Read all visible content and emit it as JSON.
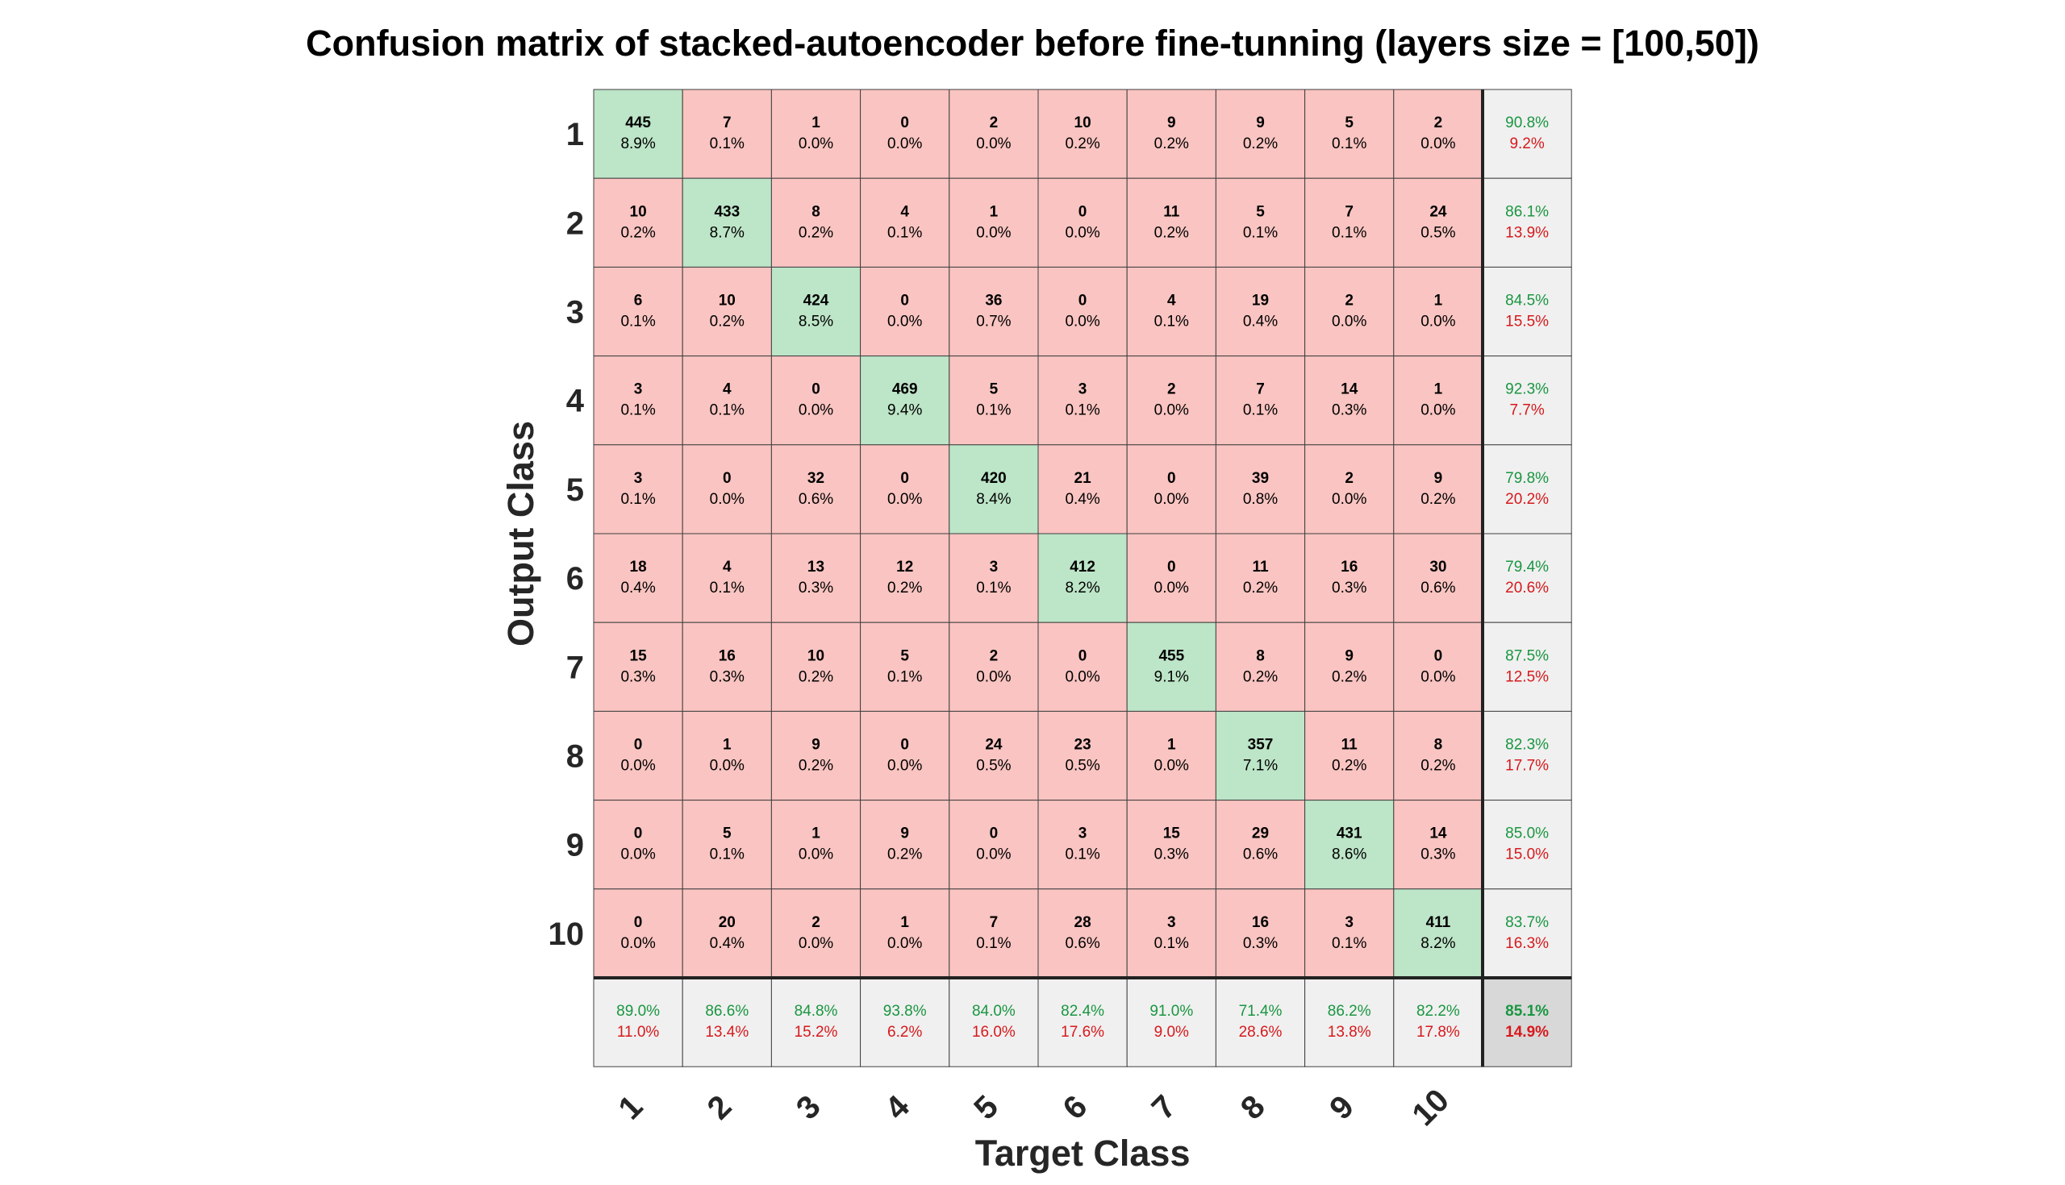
{
  "chart_data": {
    "type": "heatmap",
    "title": "Confusion matrix of stacked-autoencoder before fine-tunning (layers size = [100,50])",
    "xlabel": "Target Class",
    "ylabel": "Output Class",
    "row_labels": [
      "1",
      "2",
      "3",
      "4",
      "5",
      "6",
      "7",
      "8",
      "9",
      "10"
    ],
    "col_labels": [
      "1",
      "2",
      "3",
      "4",
      "5",
      "6",
      "7",
      "8",
      "9",
      "10"
    ],
    "counts": [
      [
        445,
        7,
        1,
        0,
        2,
        10,
        9,
        9,
        5,
        2
      ],
      [
        10,
        433,
        8,
        4,
        1,
        0,
        11,
        5,
        7,
        24
      ],
      [
        6,
        10,
        424,
        0,
        36,
        0,
        4,
        19,
        2,
        1
      ],
      [
        3,
        4,
        0,
        469,
        5,
        3,
        2,
        7,
        14,
        1
      ],
      [
        3,
        0,
        32,
        0,
        420,
        21,
        0,
        39,
        2,
        9
      ],
      [
        18,
        4,
        13,
        12,
        3,
        412,
        0,
        11,
        16,
        30
      ],
      [
        15,
        16,
        10,
        5,
        2,
        0,
        455,
        8,
        9,
        0
      ],
      [
        0,
        1,
        9,
        0,
        24,
        23,
        1,
        357,
        11,
        8
      ],
      [
        0,
        5,
        1,
        9,
        0,
        3,
        15,
        29,
        431,
        14
      ],
      [
        0,
        20,
        2,
        1,
        7,
        28,
        3,
        16,
        3,
        411
      ]
    ],
    "percents": [
      [
        "8.9%",
        "0.1%",
        "0.0%",
        "0.0%",
        "0.0%",
        "0.2%",
        "0.2%",
        "0.2%",
        "0.1%",
        "0.0%"
      ],
      [
        "0.2%",
        "8.7%",
        "0.2%",
        "0.1%",
        "0.0%",
        "0.0%",
        "0.2%",
        "0.1%",
        "0.1%",
        "0.5%"
      ],
      [
        "0.1%",
        "0.2%",
        "8.5%",
        "0.0%",
        "0.7%",
        "0.0%",
        "0.1%",
        "0.4%",
        "0.0%",
        "0.0%"
      ],
      [
        "0.1%",
        "0.1%",
        "0.0%",
        "9.4%",
        "0.1%",
        "0.1%",
        "0.0%",
        "0.1%",
        "0.3%",
        "0.0%"
      ],
      [
        "0.1%",
        "0.0%",
        "0.6%",
        "0.0%",
        "8.4%",
        "0.4%",
        "0.0%",
        "0.8%",
        "0.0%",
        "0.2%"
      ],
      [
        "0.4%",
        "0.1%",
        "0.3%",
        "0.2%",
        "0.1%",
        "8.2%",
        "0.0%",
        "0.2%",
        "0.3%",
        "0.6%"
      ],
      [
        "0.3%",
        "0.3%",
        "0.2%",
        "0.1%",
        "0.0%",
        "0.0%",
        "9.1%",
        "0.2%",
        "0.2%",
        "0.0%"
      ],
      [
        "0.0%",
        "0.0%",
        "0.2%",
        "0.0%",
        "0.5%",
        "0.5%",
        "0.0%",
        "7.1%",
        "0.2%",
        "0.2%"
      ],
      [
        "0.0%",
        "0.1%",
        "0.0%",
        "0.2%",
        "0.0%",
        "0.1%",
        "0.3%",
        "0.6%",
        "8.6%",
        "0.3%"
      ],
      [
        "0.0%",
        "0.4%",
        "0.0%",
        "0.0%",
        "0.1%",
        "0.6%",
        "0.1%",
        "0.3%",
        "0.1%",
        "8.2%"
      ]
    ],
    "row_summary": [
      [
        "90.8%",
        "9.2%"
      ],
      [
        "86.1%",
        "13.9%"
      ],
      [
        "84.5%",
        "15.5%"
      ],
      [
        "92.3%",
        "7.7%"
      ],
      [
        "79.8%",
        "20.2%"
      ],
      [
        "79.4%",
        "20.6%"
      ],
      [
        "87.5%",
        "12.5%"
      ],
      [
        "82.3%",
        "17.7%"
      ],
      [
        "85.0%",
        "15.0%"
      ],
      [
        "83.7%",
        "16.3%"
      ]
    ],
    "col_summary": [
      [
        "89.0%",
        "11.0%"
      ],
      [
        "86.6%",
        "13.4%"
      ],
      [
        "84.8%",
        "15.2%"
      ],
      [
        "93.8%",
        "6.2%"
      ],
      [
        "84.0%",
        "16.0%"
      ],
      [
        "82.4%",
        "17.6%"
      ],
      [
        "91.0%",
        "9.0%"
      ],
      [
        "71.4%",
        "28.6%"
      ],
      [
        "86.2%",
        "13.8%"
      ],
      [
        "82.2%",
        "17.8%"
      ]
    ],
    "overall": [
      "85.1%",
      "14.9%"
    ],
    "colors": {
      "correct_cell": "#bde5c8",
      "incorrect_cell": "#f9c4c1",
      "summary_cell": "#f0f0f0",
      "overall_cell": "#d8d8d8",
      "good_text": "#1a9641",
      "bad_text": "#d7191c",
      "grid_line": "#404040"
    }
  }
}
